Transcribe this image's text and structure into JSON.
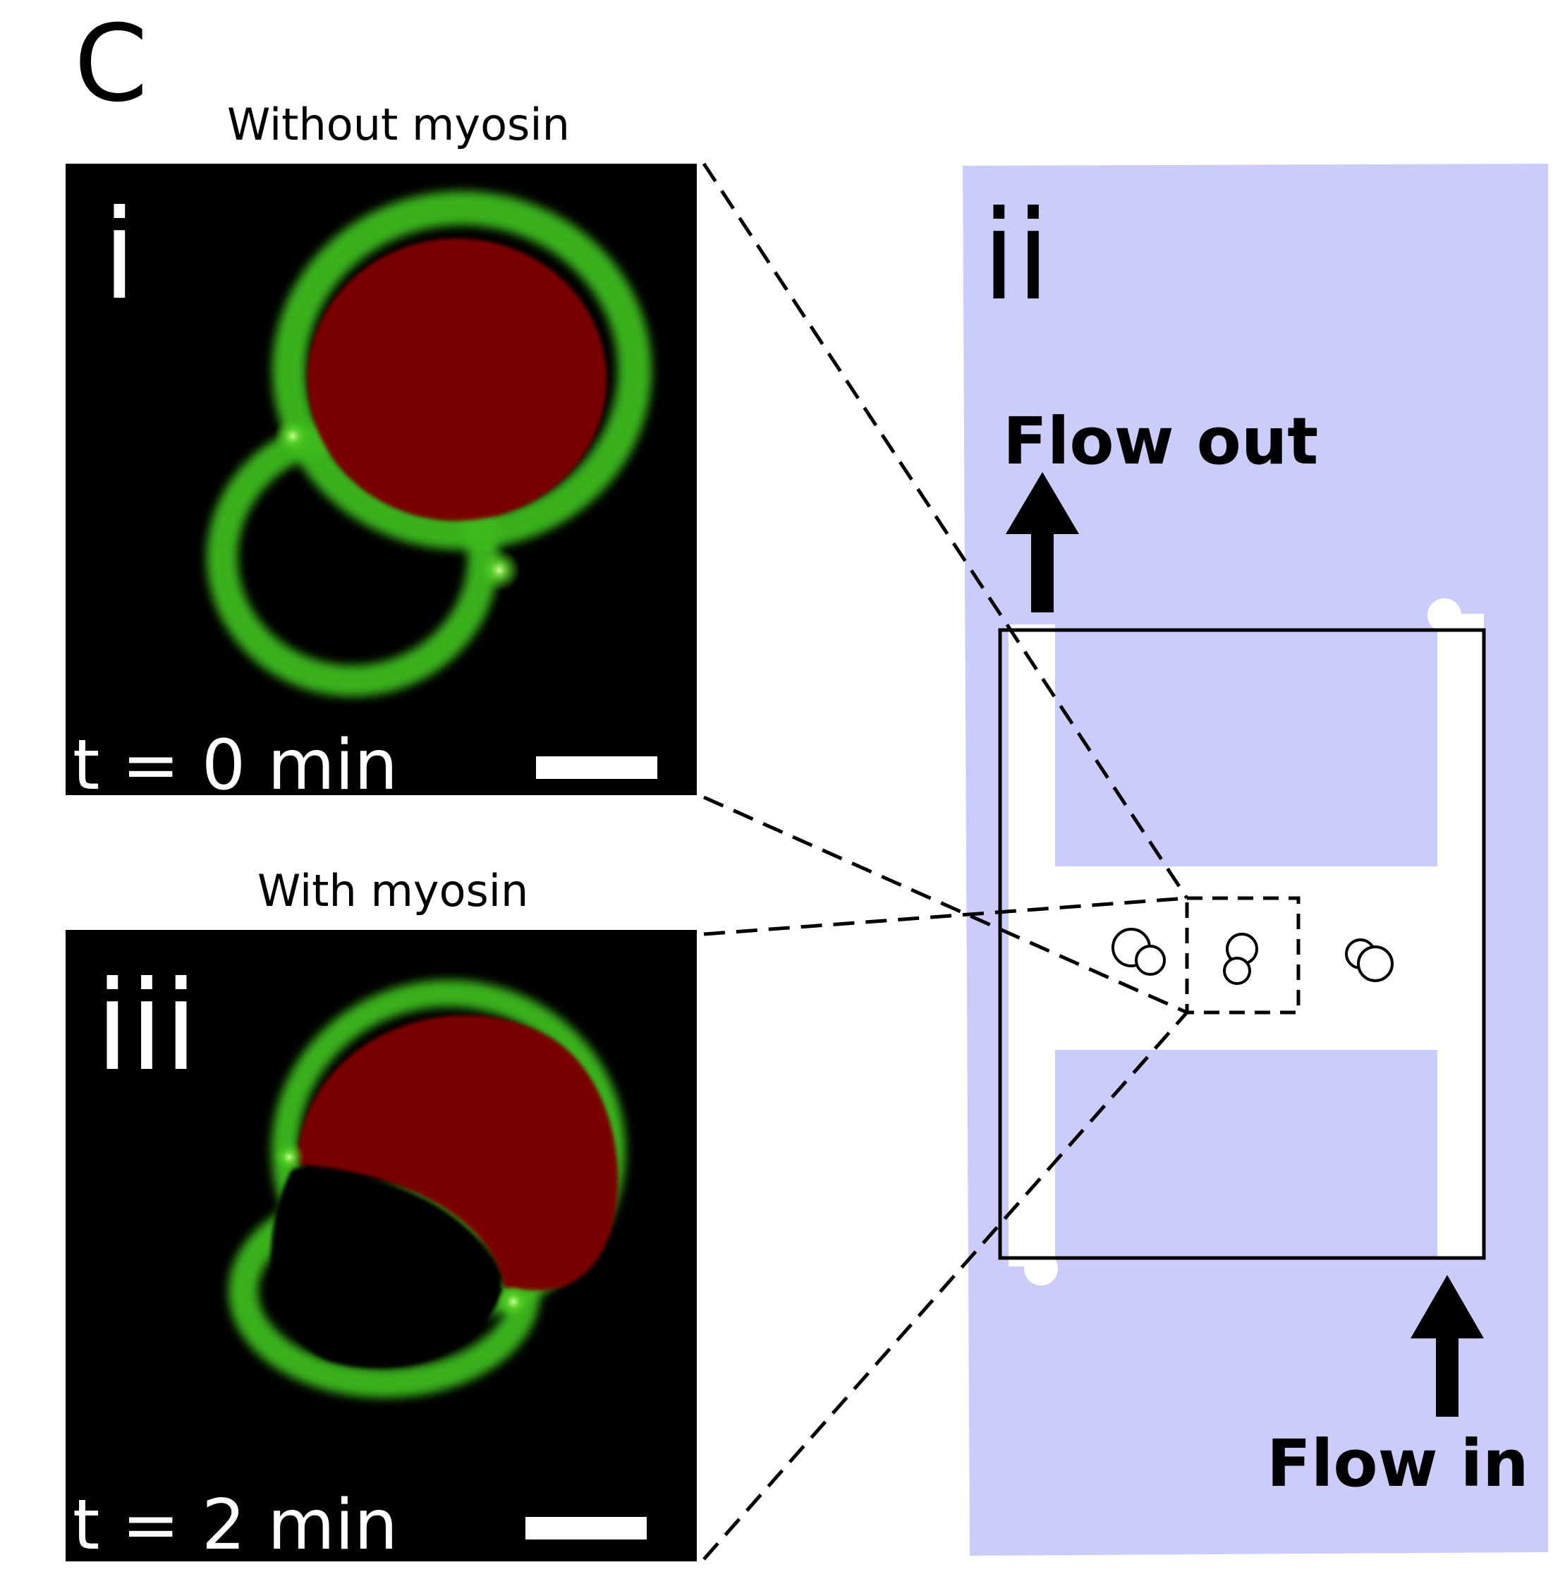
{
  "figure": {
    "panel_letter": "C",
    "panel_i": {
      "title": "Without myosin",
      "numeral": "i",
      "time_label": "t = 0 min"
    },
    "panel_iii": {
      "title": "With myosin",
      "numeral": "iii",
      "time_label": "t = 2 min"
    },
    "panel_ii": {
      "numeral": "ii",
      "flow_out_label": "Flow out",
      "flow_in_label": "Flow in"
    },
    "colors": {
      "chip_background": "#ccccfa",
      "channel": "#ffffff",
      "membrane": "#3dbb1a",
      "vesicle_fill": "#7a0000",
      "micrograph_background": "#000000",
      "line": "#000000"
    }
  }
}
